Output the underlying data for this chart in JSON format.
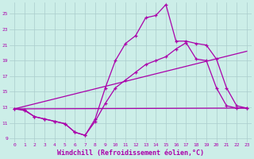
{
  "background_color": "#cceee8",
  "grid_color": "#aacccc",
  "line_color": "#aa00aa",
  "xlabel": "Windchill (Refroidissement éolien,°C)",
  "xlabel_fontsize": 6,
  "ytick_labels": [
    "9",
    "11",
    "13",
    "15",
    "17",
    "19",
    "21",
    "23",
    "25"
  ],
  "ytick_values": [
    9,
    11,
    13,
    15,
    17,
    19,
    21,
    23,
    25
  ],
  "xtick_values": [
    0,
    1,
    2,
    3,
    4,
    5,
    6,
    7,
    8,
    9,
    10,
    11,
    12,
    13,
    14,
    15,
    16,
    17,
    18,
    19,
    20,
    21,
    22,
    23
  ],
  "xlim": [
    -0.5,
    23.5
  ],
  "ylim": [
    8.5,
    26.5
  ],
  "series1_x": [
    0,
    1,
    2,
    3,
    4,
    5,
    6,
    7,
    8,
    9,
    10,
    11,
    12,
    13,
    14,
    15,
    16,
    17,
    18,
    19,
    20,
    21,
    22,
    23
  ],
  "series1_y": [
    12.8,
    12.7,
    11.8,
    11.5,
    11.2,
    10.9,
    9.8,
    9.4,
    11.5,
    15.5,
    19.0,
    21.2,
    22.2,
    24.5,
    24.8,
    26.2,
    21.5,
    21.5,
    21.2,
    21.0,
    19.2,
    15.5,
    13.2,
    12.9
  ],
  "series2_x": [
    0,
    1,
    2,
    3,
    4,
    5,
    6,
    7,
    8,
    9,
    10,
    11,
    12,
    13,
    14,
    15,
    16,
    17,
    18,
    19,
    20,
    21,
    22,
    23
  ],
  "series2_y": [
    12.8,
    12.6,
    11.8,
    11.5,
    11.2,
    10.9,
    9.8,
    9.4,
    11.2,
    13.5,
    15.5,
    16.5,
    17.5,
    18.5,
    19.0,
    19.5,
    20.5,
    21.3,
    19.2,
    19.0,
    15.5,
    13.2,
    12.9,
    12.9
  ],
  "series3_x": [
    0,
    23
  ],
  "series3_y": [
    12.8,
    12.9
  ],
  "series4_x": [
    0,
    23
  ],
  "series4_y": [
    12.8,
    20.2
  ]
}
